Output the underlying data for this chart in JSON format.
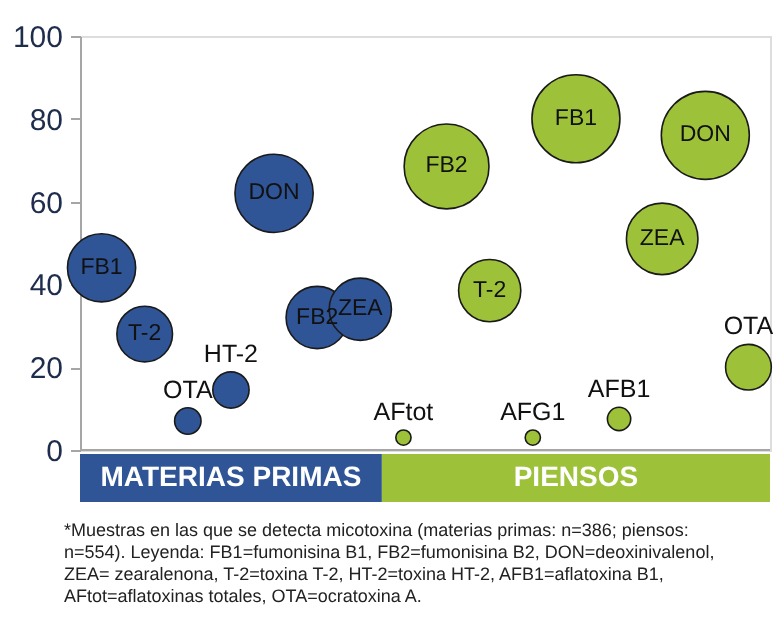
{
  "chart_data": {
    "type": "bubble",
    "categories": [
      null,
      null,
      null,
      null,
      null,
      null,
      null,
      null,
      null,
      null,
      null,
      null,
      null,
      null,
      null,
      null
    ],
    "ylim": [
      0,
      100
    ],
    "yticks": [
      0,
      20,
      40,
      60,
      80,
      100
    ],
    "tick_labels": "y",
    "series": [
      {
        "name": "MATERIAS PRIMAS",
        "color": "#2f5597",
        "values": [
          44,
          28,
          7,
          14.5,
          62,
          32,
          34,
          null,
          null,
          null,
          null,
          null,
          null,
          null,
          null,
          null
        ],
        "sizes": [
          0.6,
          0.4,
          0.09,
          0.17,
          0.79,
          0.5,
          0.5,
          null,
          null,
          null,
          null,
          null,
          null,
          null,
          null,
          null
        ]
      },
      {
        "name": "PIENSOS",
        "color": "#9dc23a",
        "values": [
          null,
          null,
          null,
          null,
          null,
          null,
          null,
          3,
          68.5,
          38.5,
          3,
          80,
          7.5,
          51,
          76,
          20
        ],
        "sizes": [
          null,
          null,
          null,
          null,
          null,
          null,
          null,
          0.03,
          0.93,
          0.5,
          0.03,
          1,
          0.07,
          0.66,
          1,
          0.27
        ]
      }
    ],
    "annotations": [
      {
        "text": "FB1",
        "y": 44
      },
      {
        "text": "T-2",
        "y": 28
      },
      {
        "text": "OTA",
        "y": 7
      },
      {
        "text": "HT-2",
        "y": 14.5
      },
      {
        "text": "DON",
        "y": 62
      },
      {
        "text": "FB2",
        "y": 32
      },
      {
        "text": "ZEA",
        "y": 34
      },
      {
        "text": "AFtot",
        "y": 3
      },
      {
        "text": "FB2",
        "y": 68.5
      },
      {
        "text": "T-2",
        "y": 38.5
      },
      {
        "text": "AFG1",
        "y": 3
      },
      {
        "text": "FB1",
        "y": 80
      },
      {
        "text": "AFB1",
        "y": 7.5
      },
      {
        "text": "ZEA",
        "y": 51
      },
      {
        "text": "DON",
        "y": 76
      },
      {
        "text": "OTA",
        "y": 20
      },
      "*Muestras en las que se detecta micotoxina (materias primas: n=386; piensos: n=554). Leyenda: FB1=fumonisina B1, FB2=fumonisina B2, DON=deoxinivalenol, ZEA= zearalenona, T-2=toxina T-2, HT-2=toxina HT-2, AFB1=aflatoxina B1, AFtot=aflatoxinas totales, OTA=ocratoxina A."
    ]
  }
}
